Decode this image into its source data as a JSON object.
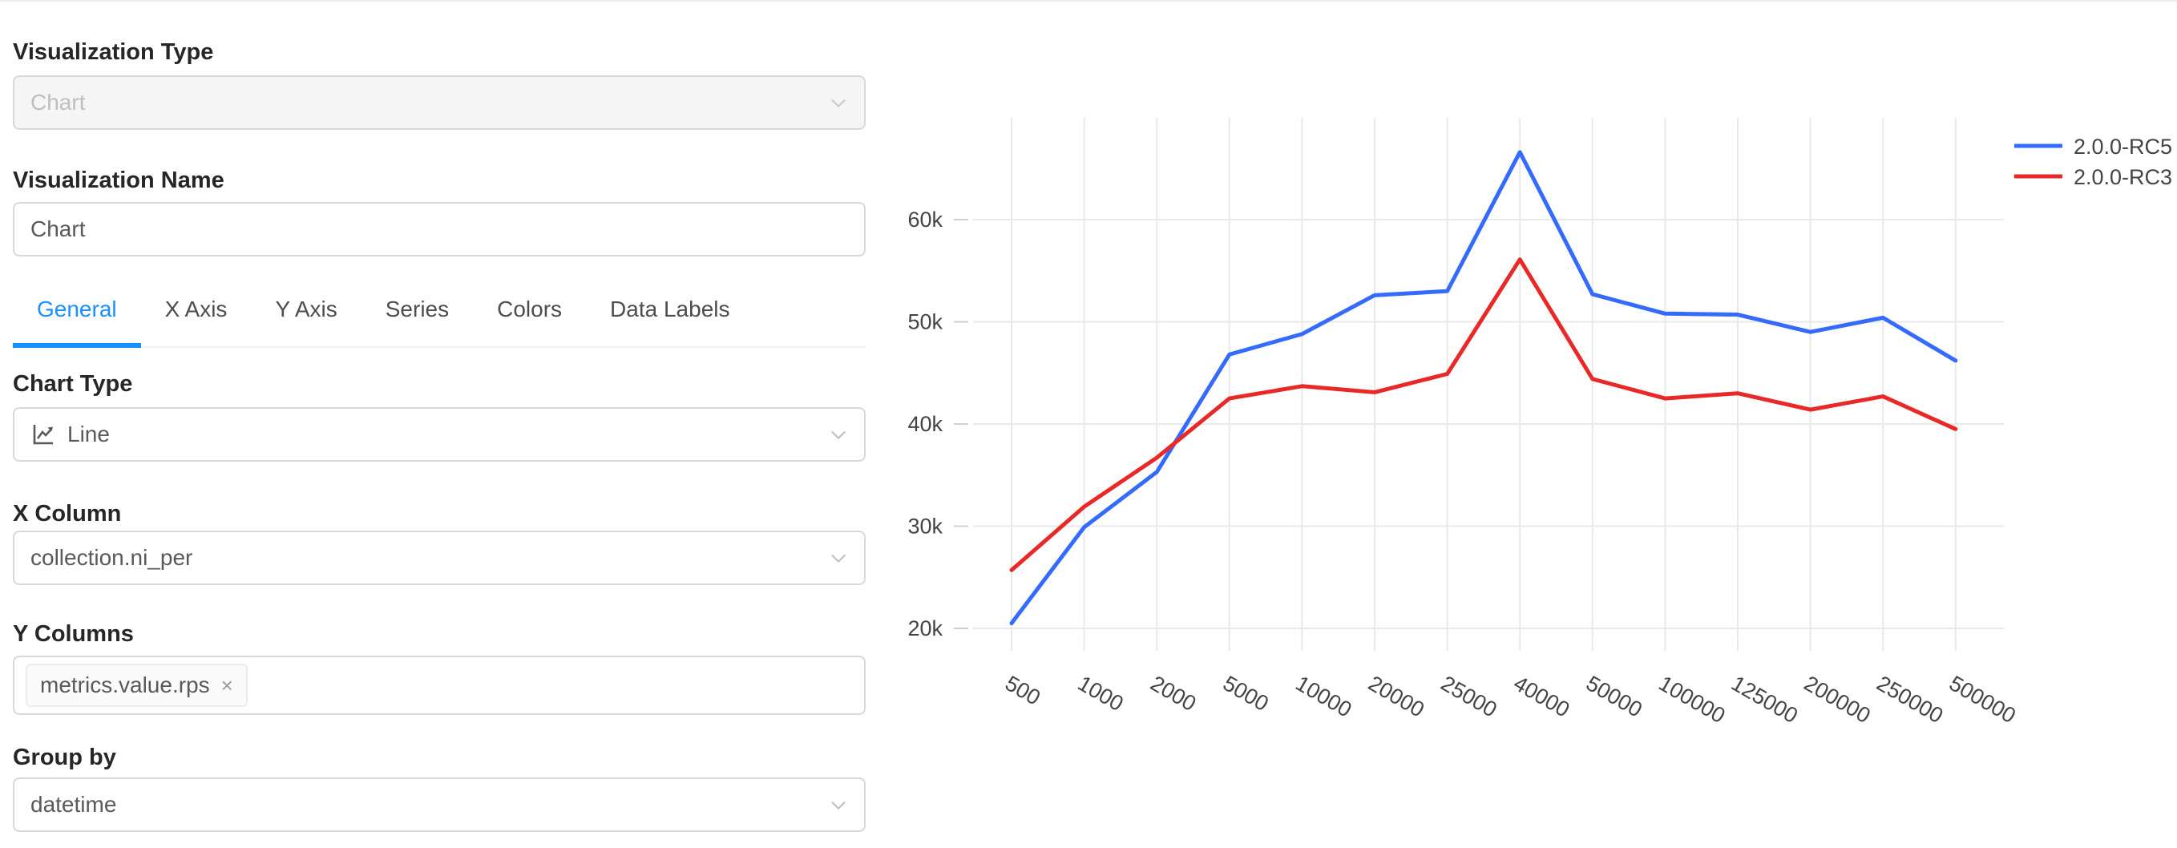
{
  "sidebar": {
    "viz_type": {
      "label": "Visualization Type",
      "value": "Chart",
      "disabled": true
    },
    "viz_name": {
      "label": "Visualization Name",
      "value": "Chart"
    },
    "tabs": [
      {
        "label": "General",
        "active": true
      },
      {
        "label": "X Axis"
      },
      {
        "label": "Y Axis"
      },
      {
        "label": "Series"
      },
      {
        "label": "Colors"
      },
      {
        "label": "Data Labels"
      }
    ],
    "chart_type": {
      "label": "Chart Type",
      "value": "Line",
      "icon": "line-chart-icon"
    },
    "x_column": {
      "label": "X Column",
      "value": "collection.ni_per"
    },
    "y_columns": {
      "label": "Y Columns",
      "tags": [
        {
          "text": "metrics.value.rps",
          "close": "×"
        }
      ]
    },
    "group_by": {
      "label": "Group by",
      "value": "datetime"
    },
    "accent_color": "#1890ff"
  },
  "chart_data": {
    "type": "line",
    "title": "",
    "xlabel": "",
    "ylabel": "",
    "categories": [
      "500",
      "1000",
      "2000",
      "5000",
      "10000",
      "20000",
      "25000",
      "40000",
      "50000",
      "100000",
      "125000",
      "200000",
      "250000",
      "500000"
    ],
    "series": [
      {
        "name": "2.0.0-RC5",
        "color": "#356AFF",
        "values": [
          20500,
          29900,
          35300,
          46800,
          48800,
          52600,
          53000,
          66600,
          52700,
          50800,
          50700,
          49000,
          50400,
          46200
        ]
      },
      {
        "name": "2.0.0-RC3",
        "color": "#E92828",
        "values": [
          25700,
          31900,
          36700,
          42500,
          43700,
          43100,
          44900,
          56100,
          44400,
          42500,
          43000,
          41400,
          42700,
          39500
        ]
      }
    ],
    "yticks": [
      {
        "value": 20000,
        "label": "20k"
      },
      {
        "value": 30000,
        "label": "30k"
      },
      {
        "value": 40000,
        "label": "40k"
      },
      {
        "value": 50000,
        "label": "50k"
      },
      {
        "value": 60000,
        "label": "60k"
      }
    ],
    "ylim": [
      17800,
      69960
    ],
    "grid": true,
    "grid_color": "#e9e9e9",
    "tick_color": "#444444",
    "tick_mark_color": "#d0d0d0",
    "xtick_angle": 30,
    "legend_position": "top-right"
  }
}
